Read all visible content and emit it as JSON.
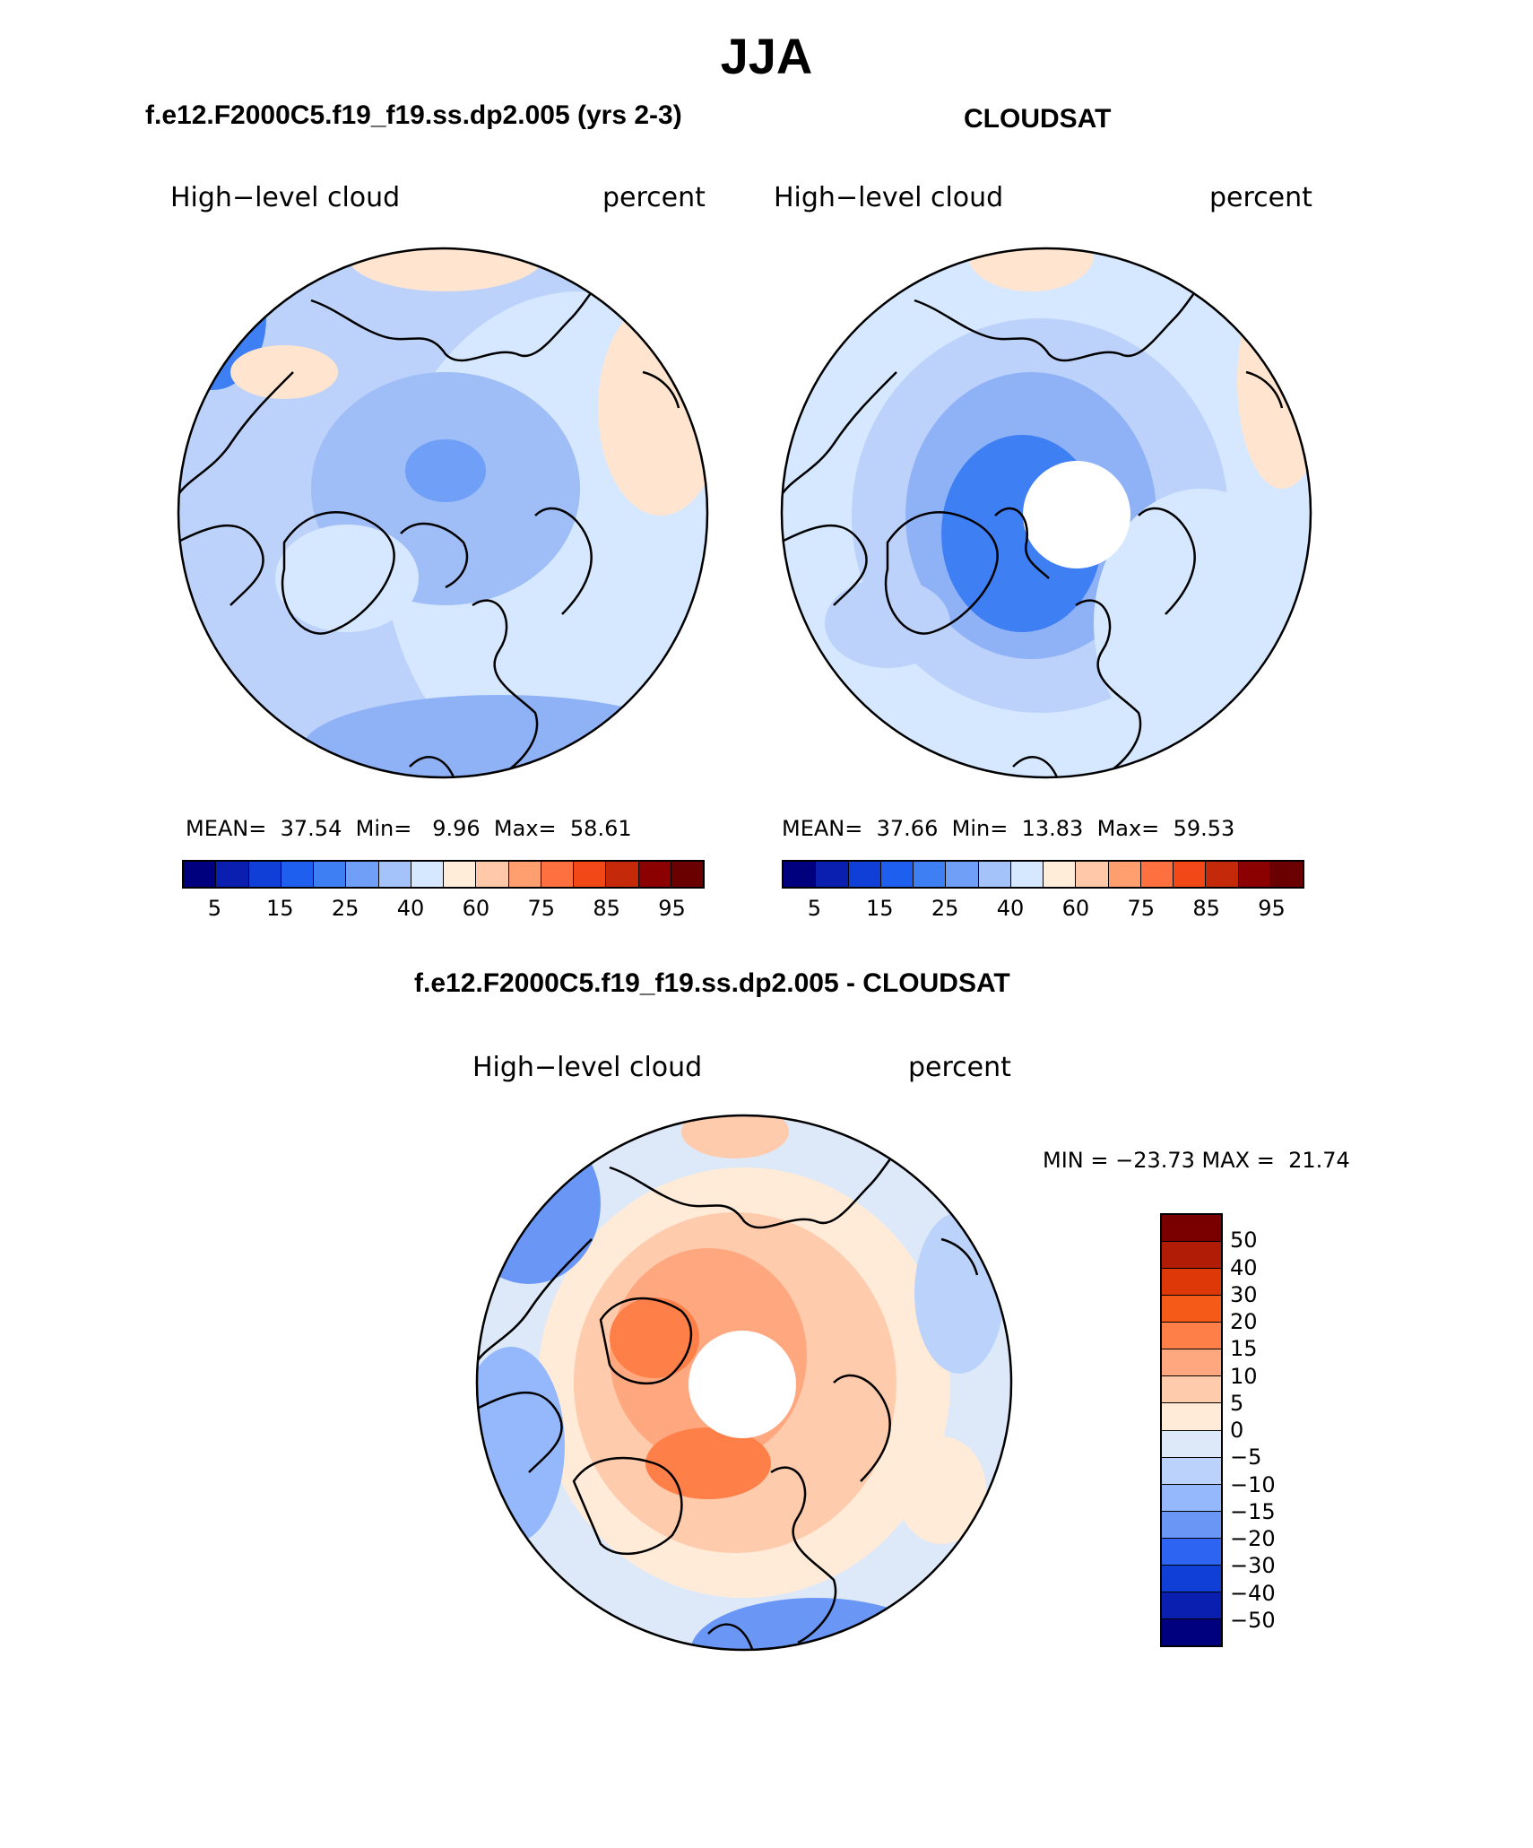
{
  "title": "JJA",
  "panels": {
    "model": {
      "heading": "f.e12.F2000C5.f19_f19.ss.dp2.005 (yrs 2-3)",
      "left_label": "High−level cloud",
      "right_label": "percent",
      "mean_label": "MEAN=",
      "mean": "37.54",
      "min_label": "Min=",
      "min": "9.96",
      "max_label": "Max=",
      "max": "58.61"
    },
    "obs": {
      "heading": "CLOUDSAT",
      "left_label": "High−level cloud",
      "right_label": "percent",
      "mean_label": "MEAN=",
      "mean": "37.66",
      "min_label": "Min=",
      "min": "13.83",
      "max_label": "Max=",
      "max": "59.53"
    },
    "diff": {
      "heading": "f.e12.F2000C5.f19_f19.ss.dp2.005 - CLOUDSAT",
      "left_label": "High−level cloud",
      "right_label": "percent",
      "minmax": "MIN = −23.73 MAX =  21.74"
    }
  },
  "chart_data": [
    {
      "type": "heatmap",
      "projection": "north polar stereographic",
      "title": "f.e12.F2000C5.f19_f19.ss.dp2.005 (yrs 2-3)",
      "variable": "High-level cloud",
      "units": "percent",
      "mean": 37.54,
      "min": 9.96,
      "max": 58.61,
      "colorbar": {
        "orientation": "horizontal",
        "levels": [
          5,
          10,
          15,
          20,
          25,
          30,
          40,
          50,
          60,
          70,
          75,
          80,
          85,
          90,
          95
        ],
        "tick_labels": [
          "5",
          "15",
          "25",
          "40",
          "60",
          "75",
          "85",
          "95"
        ],
        "colors": [
          "#00007f",
          "#0a1fb0",
          "#0f3fd6",
          "#1f5ff0",
          "#3f7ff4",
          "#6f9ff6",
          "#a3c3fa",
          "#d6e8ff",
          "#ffecd9",
          "#ffc8a8",
          "#ff9f70",
          "#ff7040",
          "#f24818",
          "#c42a0a",
          "#8b0000",
          "#6a0000"
        ]
      }
    },
    {
      "type": "heatmap",
      "projection": "north polar stereographic",
      "title": "CLOUDSAT",
      "variable": "High-level cloud",
      "units": "percent",
      "mean": 37.66,
      "min": 13.83,
      "max": 59.53,
      "colorbar": {
        "orientation": "horizontal",
        "levels": [
          5,
          10,
          15,
          20,
          25,
          30,
          40,
          50,
          60,
          70,
          75,
          80,
          85,
          90,
          95
        ],
        "tick_labels": [
          "5",
          "15",
          "25",
          "40",
          "60",
          "75",
          "85",
          "95"
        ],
        "colors": [
          "#00007f",
          "#0a1fb0",
          "#0f3fd6",
          "#1f5ff0",
          "#3f7ff4",
          "#6f9ff6",
          "#a3c3fa",
          "#d6e8ff",
          "#ffecd9",
          "#ffc8a8",
          "#ff9f70",
          "#ff7040",
          "#f24818",
          "#c42a0a",
          "#8b0000",
          "#6a0000"
        ]
      }
    },
    {
      "type": "heatmap",
      "projection": "north polar stereographic",
      "title": "f.e12.F2000C5.f19_f19.ss.dp2.005 - CLOUDSAT",
      "variable": "High-level cloud",
      "units": "percent",
      "min": -23.73,
      "max": 21.74,
      "colorbar": {
        "orientation": "vertical",
        "levels": [
          50,
          40,
          30,
          20,
          15,
          10,
          5,
          0,
          -5,
          -10,
          -15,
          -20,
          -30,
          -40,
          -50
        ],
        "tick_labels": [
          "50",
          "40",
          "30",
          "20",
          "15",
          "10",
          "5",
          "0",
          "−5",
          "−10",
          "−15",
          "−20",
          "−30",
          "−40",
          "−50"
        ],
        "colors": [
          "#7a0000",
          "#b01c05",
          "#de3808",
          "#f55a18",
          "#ff7f48",
          "#ffa880",
          "#ffcbad",
          "#ffebd8",
          "#dde9f9",
          "#bbd3fb",
          "#94b8fb",
          "#6a97f6",
          "#2e64f2",
          "#0f3fd6",
          "#0a1fb0",
          "#00007f"
        ]
      }
    }
  ]
}
